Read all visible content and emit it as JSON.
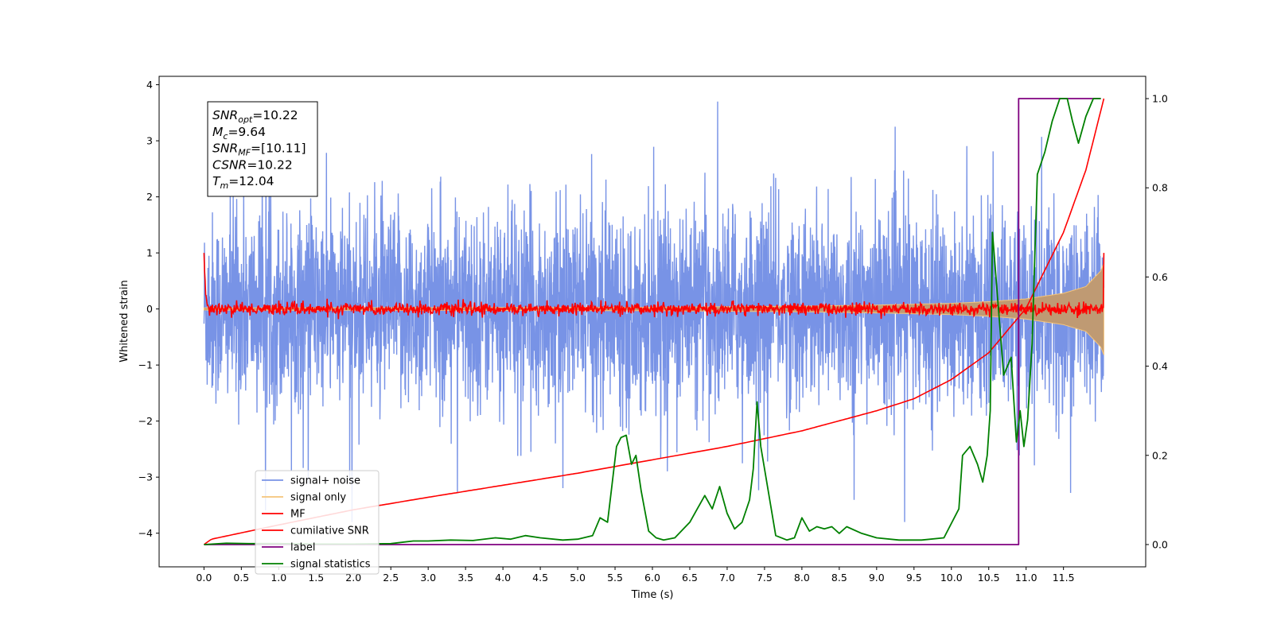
{
  "chart_data": {
    "type": "line",
    "xlabel": "Time (s)",
    "ylabel": "Whitened strain",
    "xlim": [
      -0.6,
      12.6
    ],
    "ylim": [
      -4.6,
      4.15
    ],
    "ylim_right": [
      -0.05,
      1.05
    ],
    "x_ticks": [
      "0.0",
      "0.5",
      "1.0",
      "1.5",
      "2.0",
      "2.5",
      "3.0",
      "3.5",
      "4.0",
      "4.5",
      "5.0",
      "5.5",
      "6.0",
      "6.5",
      "7.0",
      "7.5",
      "8.0",
      "8.5",
      "9.0",
      "9.5",
      "10.0",
      "10.5",
      "11.0",
      "11.5"
    ],
    "y_ticks_left": [
      "−4",
      "−3",
      "−2",
      "−1",
      "0",
      "1",
      "2",
      "3",
      "4"
    ],
    "y_ticks_right": [
      "0.0",
      "0.2",
      "0.4",
      "0.6",
      "0.8",
      "1.0"
    ],
    "legend_position": "lower-left",
    "stats_box": [
      {
        "main": "SNR",
        "sub": "opt",
        "rest": "=10.22"
      },
      {
        "main": "M",
        "sub": "c",
        "rest": "=9.64"
      },
      {
        "main": "SNR",
        "sub": "MF",
        "rest": "=[10.11]"
      },
      {
        "main": "CSNR",
        "sub": "",
        "rest": "=10.22"
      },
      {
        "main": "T",
        "sub": "m",
        "rest": "=12.04"
      }
    ],
    "series": [
      {
        "name": "signal+ noise",
        "color": "#7893e6",
        "axis": "left",
        "x_range": [
          0,
          12.04
        ],
        "typical_range": [
          -1.8,
          1.8
        ],
        "peak_range": [
          -3.8,
          3.7
        ]
      },
      {
        "name": "signal only",
        "color": "#f5c47a",
        "axis": "left",
        "x_range": [
          0,
          12.04
        ],
        "envelope": {
          "x": [
            0,
            6,
            8,
            9,
            10,
            10.5,
            11,
            11.5,
            11.8,
            12.0,
            12.04
          ],
          "amplitude": [
            0.02,
            0.03,
            0.05,
            0.07,
            0.1,
            0.13,
            0.18,
            0.28,
            0.4,
            0.68,
            0.82
          ]
        }
      },
      {
        "name": "MF",
        "color": "#ff0000",
        "axis": "left",
        "x_range": [
          0,
          12.04
        ],
        "start_value": 1.0,
        "end_value": 1.0,
        "typical_range": [
          -0.15,
          0.15
        ]
      },
      {
        "name": "cumilative SNR",
        "color": "#ff0000",
        "axis": "right",
        "x": [
          0,
          0.1,
          1,
          2,
          3,
          4,
          5,
          6,
          7,
          8,
          9,
          9.5,
          10,
          10.5,
          11,
          11.5,
          11.8,
          12.04
        ],
        "values": [
          0.0,
          0.012,
          0.044,
          0.078,
          0.106,
          0.133,
          0.16,
          0.19,
          0.22,
          0.255,
          0.3,
          0.327,
          0.37,
          0.43,
          0.53,
          0.7,
          0.84,
          1.0
        ]
      },
      {
        "name": "label",
        "color": "#800080",
        "axis": "right",
        "x": [
          0,
          10.9,
          10.9,
          11.0,
          12.0
        ],
        "values": [
          0,
          0,
          1,
          1,
          1
        ]
      },
      {
        "name": "signal statistics",
        "color": "#008000",
        "axis": "right",
        "x": [
          0,
          0.3,
          0.6,
          1.0,
          1.5,
          2.0,
          2.5,
          2.8,
          3.0,
          3.3,
          3.6,
          3.9,
          4.1,
          4.3,
          4.5,
          4.8,
          5.0,
          5.2,
          5.3,
          5.4,
          5.45,
          5.52,
          5.58,
          5.65,
          5.72,
          5.78,
          5.85,
          5.95,
          6.05,
          6.15,
          6.3,
          6.5,
          6.6,
          6.7,
          6.8,
          6.9,
          7.0,
          7.1,
          7.2,
          7.3,
          7.35,
          7.4,
          7.45,
          7.55,
          7.65,
          7.8,
          7.9,
          8.0,
          8.1,
          8.2,
          8.3,
          8.4,
          8.5,
          8.6,
          8.8,
          9.0,
          9.3,
          9.6,
          9.9,
          10.1,
          10.15,
          10.25,
          10.35,
          10.42,
          10.48,
          10.52,
          10.55,
          10.62,
          10.7,
          10.8,
          10.87,
          10.92,
          10.97,
          11.02,
          11.08,
          11.15,
          11.25,
          11.35,
          11.45,
          11.55,
          11.62,
          11.7,
          11.8,
          11.9,
          12.0
        ],
        "values": [
          0.0,
          0.003,
          0.002,
          0.002,
          0.001,
          0.001,
          0.002,
          0.008,
          0.008,
          0.01,
          0.009,
          0.015,
          0.012,
          0.02,
          0.015,
          0.01,
          0.012,
          0.02,
          0.06,
          0.05,
          0.12,
          0.22,
          0.24,
          0.245,
          0.18,
          0.2,
          0.12,
          0.03,
          0.015,
          0.01,
          0.015,
          0.05,
          0.08,
          0.11,
          0.08,
          0.13,
          0.07,
          0.035,
          0.05,
          0.1,
          0.17,
          0.32,
          0.22,
          0.12,
          0.02,
          0.01,
          0.015,
          0.06,
          0.03,
          0.04,
          0.035,
          0.04,
          0.025,
          0.04,
          0.025,
          0.015,
          0.01,
          0.01,
          0.015,
          0.08,
          0.2,
          0.22,
          0.18,
          0.14,
          0.2,
          0.3,
          0.7,
          0.55,
          0.38,
          0.42,
          0.23,
          0.3,
          0.22,
          0.28,
          0.45,
          0.83,
          0.88,
          0.95,
          1.0,
          1.0,
          0.95,
          0.9,
          0.96,
          1.0,
          1.0
        ]
      }
    ]
  }
}
